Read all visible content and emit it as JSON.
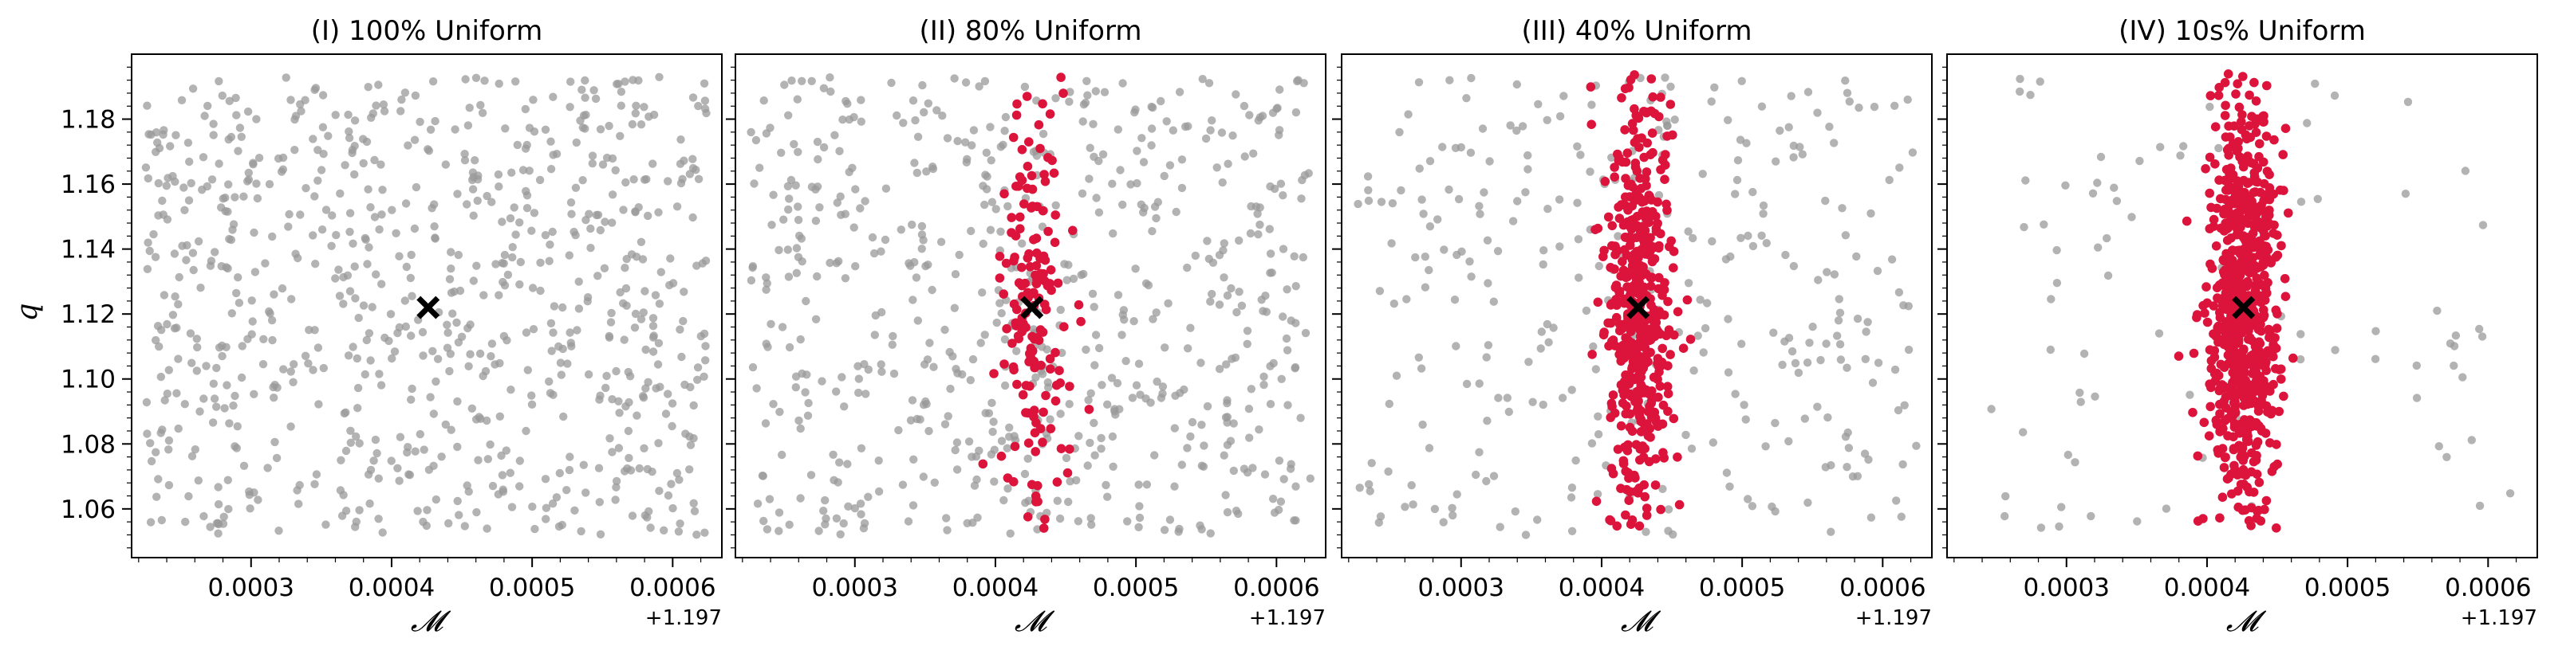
{
  "chart_data": [
    {
      "type": "scatter",
      "title": "(I) 100% Uniform",
      "uniform_fraction": 1.0,
      "xlabel": "𝓜",
      "ylabel": "q",
      "x_offset_label": "+1.197",
      "x_offset": 1.197,
      "xlim": [
        0.000215,
        0.000635
      ],
      "ylim": [
        1.045,
        1.2
      ],
      "xticks": [
        0.0003,
        0.0004,
        0.0005,
        0.0006
      ],
      "xtick_labels": [
        "0.0003",
        "0.0004",
        "0.0005",
        "0.0006"
      ],
      "yticks": [
        1.06,
        1.08,
        1.1,
        1.12,
        1.14,
        1.16,
        1.18
      ],
      "ytick_labels": [
        "1.06",
        "1.08",
        "1.10",
        "1.12",
        "1.14",
        "1.16",
        "1.18"
      ],
      "grid": false,
      "series": [
        {
          "color": "#999999",
          "marker": "circle",
          "count": 800,
          "distribution": "uniform",
          "x_range": [
            0.000225,
            0.000625
          ],
          "y_range": [
            1.052,
            1.193
          ]
        },
        {
          "color": "#dc143c",
          "marker": "circle",
          "count": 0,
          "distribution": "gaussian",
          "x_mean": 0.000426,
          "x_std": 1.25e-05,
          "y_mean": 1.121,
          "y_std": 0.032
        },
        {
          "color": "#000000",
          "marker": "x",
          "x": [
            0.000426
          ],
          "y": [
            1.122
          ]
        }
      ]
    },
    {
      "type": "scatter",
      "title": "(II) 80% Uniform",
      "uniform_fraction": 0.8,
      "xlabel": "𝓜",
      "ylabel": "",
      "x_offset_label": "+1.197",
      "x_offset": 1.197,
      "xlim": [
        0.000215,
        0.000635
      ],
      "ylim": [
        1.045,
        1.2
      ],
      "xticks": [
        0.0003,
        0.0004,
        0.0005,
        0.0006
      ],
      "xtick_labels": [
        "0.0003",
        "0.0004",
        "0.0005",
        "0.0006"
      ],
      "yticks": [
        1.06,
        1.08,
        1.1,
        1.12,
        1.14,
        1.16,
        1.18
      ],
      "ytick_labels": [],
      "grid": false,
      "series": [
        {
          "color": "#999999",
          "marker": "circle",
          "count": 640,
          "distribution": "uniform",
          "x_range": [
            0.000225,
            0.000625
          ],
          "y_range": [
            1.052,
            1.193
          ]
        },
        {
          "color": "#dc143c",
          "marker": "circle",
          "count": 160,
          "distribution": "gaussian",
          "x_mean": 0.000426,
          "x_std": 1.25e-05,
          "y_mean": 1.121,
          "y_std": 0.032
        },
        {
          "color": "#000000",
          "marker": "x",
          "x": [
            0.000426
          ],
          "y": [
            1.122
          ]
        }
      ]
    },
    {
      "type": "scatter",
      "title": "(III) 40% Uniform",
      "uniform_fraction": 0.4,
      "xlabel": "𝓜",
      "ylabel": "",
      "x_offset_label": "+1.197",
      "x_offset": 1.197,
      "xlim": [
        0.000215,
        0.000635
      ],
      "ylim": [
        1.045,
        1.2
      ],
      "xticks": [
        0.0003,
        0.0004,
        0.0005,
        0.0006
      ],
      "xtick_labels": [
        "0.0003",
        "0.0004",
        "0.0005",
        "0.0006"
      ],
      "yticks": [
        1.06,
        1.08,
        1.1,
        1.12,
        1.14,
        1.16,
        1.18
      ],
      "ytick_labels": [],
      "grid": false,
      "series": [
        {
          "color": "#999999",
          "marker": "circle",
          "count": 320,
          "distribution": "uniform",
          "x_range": [
            0.000225,
            0.000625
          ],
          "y_range": [
            1.052,
            1.193
          ]
        },
        {
          "color": "#dc143c",
          "marker": "circle",
          "count": 480,
          "distribution": "gaussian",
          "x_mean": 0.000426,
          "x_std": 1.25e-05,
          "y_mean": 1.121,
          "y_std": 0.032
        },
        {
          "color": "#000000",
          "marker": "x",
          "x": [
            0.000426
          ],
          "y": [
            1.122
          ]
        }
      ]
    },
    {
      "type": "scatter",
      "title": "(IV) 10s% Uniform",
      "uniform_fraction": 0.1,
      "xlabel": "𝓜",
      "ylabel": "",
      "x_offset_label": "+1.197",
      "x_offset": 1.197,
      "xlim": [
        0.000215,
        0.000635
      ],
      "ylim": [
        1.045,
        1.2
      ],
      "xticks": [
        0.0003,
        0.0004,
        0.0005,
        0.0006
      ],
      "xtick_labels": [
        "0.0003",
        "0.0004",
        "0.0005",
        "0.0006"
      ],
      "yticks": [
        1.06,
        1.08,
        1.1,
        1.12,
        1.14,
        1.16,
        1.18
      ],
      "ytick_labels": [],
      "grid": false,
      "series": [
        {
          "color": "#999999",
          "marker": "circle",
          "count": 80,
          "distribution": "uniform",
          "x_range": [
            0.000225,
            0.000625
          ],
          "y_range": [
            1.052,
            1.193
          ]
        },
        {
          "color": "#dc143c",
          "marker": "circle",
          "count": 720,
          "distribution": "gaussian",
          "x_mean": 0.000426,
          "x_std": 1.25e-05,
          "y_mean": 1.121,
          "y_std": 0.032
        },
        {
          "color": "#000000",
          "marker": "x",
          "x": [
            0.000426
          ],
          "y": [
            1.122
          ]
        }
      ]
    }
  ]
}
